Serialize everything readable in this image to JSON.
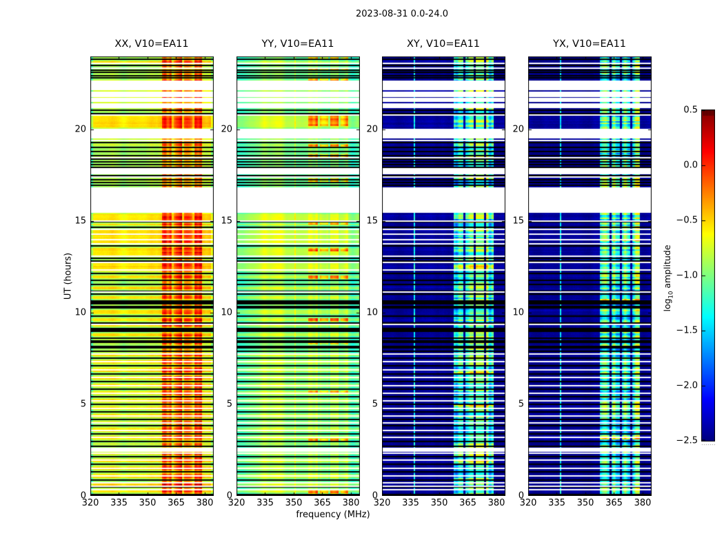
{
  "chart_data": {
    "type": "heatmap",
    "title": "2023-08-31 0.0-24.0",
    "xlabel": "frequency (MHz)",
    "ylabel": "UT (hours)",
    "xticks": [
      320,
      335,
      350,
      365,
      380
    ],
    "yticks": [
      0,
      5,
      10,
      15,
      20
    ],
    "x_range_mhz": [
      320,
      384.7
    ],
    "y_range_hours": [
      0,
      24
    ],
    "panels": [
      {
        "title": "XX, V10=EA11",
        "style": "xx",
        "base_log_amp": -0.55,
        "seed": 11
      },
      {
        "title": "YY, V10=EA11",
        "style": "yy",
        "base_log_amp": -0.95,
        "seed": 22
      },
      {
        "title": "XY, V10=EA11",
        "style": "cross",
        "base_log_amp": -2.44,
        "seed": 33
      },
      {
        "title": "YX, V10=EA11",
        "style": "cross",
        "base_log_amp": -2.44,
        "seed": 44
      }
    ],
    "colorbar": {
      "label_pre": "log",
      "label_sub": "10",
      "label_post": " amplitude",
      "min": -2.5,
      "max": 0.5,
      "colormap": "jet",
      "ticks": [
        {
          "v": 0.5,
          "label": "0.5"
        },
        {
          "v": 0.0,
          "label": "0.0"
        },
        {
          "v": -0.5,
          "label": "−0.5"
        },
        {
          "v": -1.0,
          "label": "−1.0"
        },
        {
          "v": -1.5,
          "label": "−1.5"
        },
        {
          "v": -2.0,
          "label": "−2.0"
        },
        {
          "v": -2.5,
          "label": "−2.5"
        }
      ]
    },
    "rfi_blocks_mhz": [
      [
        357.5,
        362.8
      ],
      [
        363.8,
        368.2
      ],
      [
        369.2,
        373.6
      ],
      [
        374.6,
        378.4
      ]
    ],
    "narrow_line_mhz": 336.9,
    "yy_line_mhz": 350.8,
    "missing_time_gaps_hours": [
      [
        22.2,
        22.68
      ],
      [
        21.82,
        22.08
      ],
      [
        21.56,
        21.76
      ],
      [
        21.2,
        21.45
      ],
      [
        19.55,
        20.06
      ],
      [
        17.62,
        17.9
      ],
      [
        15.5,
        16.85
      ],
      [
        2.44,
        2.62
      ]
    ],
    "flagged_black_rows_hours": [
      23.9,
      23.55,
      23.28,
      23.17,
      22.97,
      22.87,
      21.1,
      20.92,
      19.32,
      19.08,
      18.86,
      18.63,
      18.44,
      18.27,
      18.12,
      17.99,
      17.52,
      17.32,
      17.14,
      16.99,
      15.0,
      14.72,
      13.68,
      13.0,
      12.88,
      7.94,
      7.56,
      7.13,
      6.71,
      6.29,
      5.86,
      5.46,
      5.03,
      4.63,
      4.23,
      3.86,
      3.43,
      3.01,
      2.73,
      2.2,
      1.76,
      1.36,
      0.92,
      0.52,
      0.12
    ],
    "thin_white_rows_hours": [
      23.66,
      23.4,
      20.85,
      19.44,
      18.52,
      17.44,
      15.06,
      14.6,
      14.32,
      14.02,
      13.8,
      13.12,
      12.8,
      12.38,
      11.18,
      9.42,
      7.8,
      7.36,
      6.92,
      6.5,
      6.07,
      5.64,
      5.22,
      4.82,
      4.42,
      4.02,
      3.62,
      3.22,
      2.36,
      1.99,
      1.56,
      1.14,
      0.74,
      0.56,
      0.38
    ],
    "dense_flagged_regions": [
      [
        8.05,
        10.78,
        0.42
      ],
      [
        10.78,
        12.72,
        0.26
      ]
    ],
    "yy_hot_rows_hours": [
      23.9,
      23.3,
      22.75,
      20.82,
      20.62,
      20.45,
      20.28,
      19.15,
      18.56,
      17.25,
      14.9,
      13.45,
      11.95,
      9.6,
      8.35,
      5.65,
      3.05,
      0.2
    ]
  }
}
